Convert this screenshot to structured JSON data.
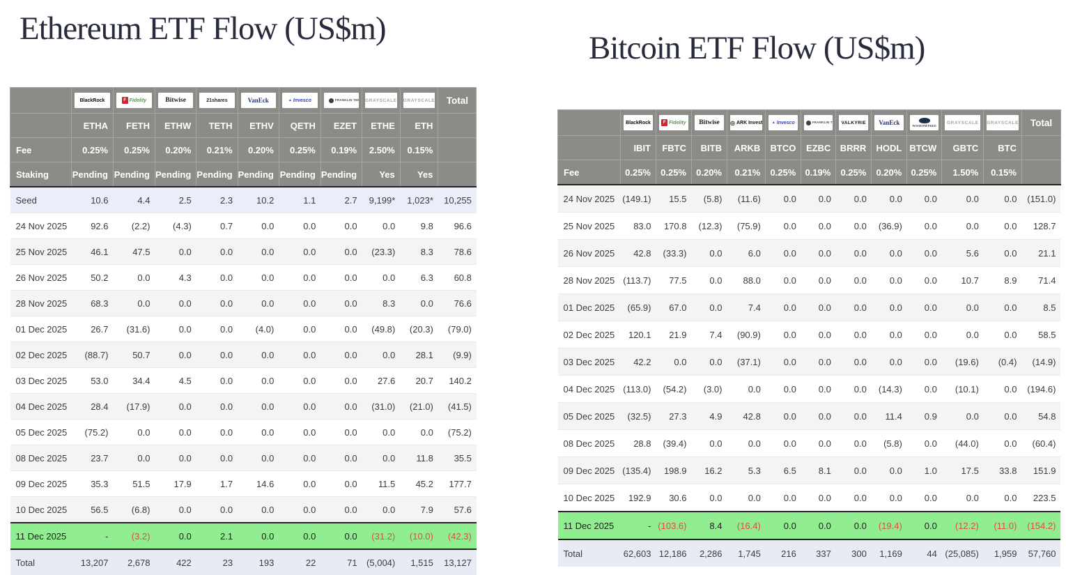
{
  "titles": {
    "eth": "Ethereum ETF Flow (US$m)",
    "btc": "Bitcoin ETF Flow (US$m)"
  },
  "colors": {
    "title_color": "#272b3c",
    "header_bg": "#8b8b87",
    "header_text": "#ffffff",
    "negative": "#e8473f",
    "value_color": "#3b3b3d",
    "seed_bg": "#ebedf9",
    "total_bg": "#e9ebf4",
    "green_bg": "#90ee90",
    "alt_bg": "#f4f4f2",
    "dark_line": "#232323"
  },
  "chart_data": [
    {
      "type": "table",
      "id": "eth",
      "title": "Ethereum ETF Flow (US$m)",
      "providers": [
        {
          "name": "BlackRock",
          "logo": "blackrock"
        },
        {
          "name": "Fidelity",
          "logo": "fidelity"
        },
        {
          "name": "Bitwise",
          "logo": "bitwise"
        },
        {
          "name": "21shares",
          "logo": "s21"
        },
        {
          "name": "VanEck",
          "logo": "vaneck"
        },
        {
          "name": "Invesco",
          "logo": "invesco"
        },
        {
          "name": "Franklin Templeton",
          "logo": "franklin"
        },
        {
          "name": "Grayscale",
          "logo": "grayscale"
        },
        {
          "name": "Grayscale",
          "logo": "grayscale"
        }
      ],
      "total_label": "Total",
      "columns": [
        "ETHA",
        "FETH",
        "ETHW",
        "TETH",
        "ETHV",
        "QETH",
        "EZET",
        "ETHE",
        "ETH"
      ],
      "fee_label": "Fee",
      "fees": [
        "0.25%",
        "0.25%",
        "0.20%",
        "0.21%",
        "0.20%",
        "0.25%",
        "0.19%",
        "2.50%",
        "0.15%"
      ],
      "staking_label": "Staking",
      "staking": [
        "Pending",
        "Pending",
        "Pending",
        "Pending",
        "Pending",
        "Pending",
        "Pending",
        "Yes",
        "Yes"
      ],
      "rows": [
        {
          "label": "Seed",
          "style": "seed",
          "values": [
            "10.6",
            "4.4",
            "2.5",
            "2.3",
            "10.2",
            "1.1",
            "2.7",
            "9,199*",
            "1,023*",
            "10,255"
          ]
        },
        {
          "label": "24 Nov 2025",
          "style": "white",
          "values": [
            "92.6",
            "(2.2)",
            "(4.3)",
            "0.7",
            "0.0",
            "0.0",
            "0.0",
            "0.0",
            "9.8",
            "96.6"
          ]
        },
        {
          "label": "25 Nov 2025",
          "style": "alt",
          "values": [
            "46.1",
            "47.5",
            "0.0",
            "0.0",
            "0.0",
            "0.0",
            "0.0",
            "(23.3)",
            "8.3",
            "78.6"
          ]
        },
        {
          "label": "26 Nov 2025",
          "style": "white",
          "values": [
            "50.2",
            "0.0",
            "4.3",
            "0.0",
            "0.0",
            "0.0",
            "0.0",
            "0.0",
            "6.3",
            "60.8"
          ]
        },
        {
          "label": "28 Nov 2025",
          "style": "alt",
          "values": [
            "68.3",
            "0.0",
            "0.0",
            "0.0",
            "0.0",
            "0.0",
            "0.0",
            "8.3",
            "0.0",
            "76.6"
          ]
        },
        {
          "label": "01 Dec 2025",
          "style": "white",
          "values": [
            "26.7",
            "(31.6)",
            "0.0",
            "0.0",
            "(4.0)",
            "0.0",
            "0.0",
            "(49.8)",
            "(20.3)",
            "(79.0)"
          ]
        },
        {
          "label": "02 Dec 2025",
          "style": "alt",
          "values": [
            "(88.7)",
            "50.7",
            "0.0",
            "0.0",
            "0.0",
            "0.0",
            "0.0",
            "0.0",
            "28.1",
            "(9.9)"
          ]
        },
        {
          "label": "03 Dec 2025",
          "style": "white",
          "values": [
            "53.0",
            "34.4",
            "4.5",
            "0.0",
            "0.0",
            "0.0",
            "0.0",
            "27.6",
            "20.7",
            "140.2"
          ]
        },
        {
          "label": "04 Dec 2025",
          "style": "alt",
          "values": [
            "28.4",
            "(17.9)",
            "0.0",
            "0.0",
            "0.0",
            "0.0",
            "0.0",
            "(31.0)",
            "(21.0)",
            "(41.5)"
          ]
        },
        {
          "label": "05 Dec 2025",
          "style": "white",
          "values": [
            "(75.2)",
            "0.0",
            "0.0",
            "0.0",
            "0.0",
            "0.0",
            "0.0",
            "0.0",
            "0.0",
            "(75.2)"
          ]
        },
        {
          "label": "08 Dec 2025",
          "style": "alt",
          "values": [
            "23.7",
            "0.0",
            "0.0",
            "0.0",
            "0.0",
            "0.0",
            "0.0",
            "0.0",
            "11.8",
            "35.5"
          ]
        },
        {
          "label": "09 Dec 2025",
          "style": "white",
          "values": [
            "35.3",
            "51.5",
            "17.9",
            "1.7",
            "14.6",
            "0.0",
            "0.0",
            "11.5",
            "45.2",
            "177.7"
          ]
        },
        {
          "label": "10 Dec 2025",
          "style": "alt",
          "values": [
            "56.5",
            "(6.8)",
            "0.0",
            "0.0",
            "0.0",
            "0.0",
            "0.0",
            "0.0",
            "7.9",
            "57.6"
          ]
        },
        {
          "label": "11 Dec 2025",
          "style": "green",
          "values": [
            "-",
            "(3.2)",
            "0.0",
            "2.1",
            "0.0",
            "0.0",
            "0.0",
            "(31.2)",
            "(10.0)",
            "(42.3)"
          ]
        },
        {
          "label": "Total",
          "style": "total",
          "values": [
            "13,207",
            "2,678",
            "422",
            "23",
            "193",
            "22",
            "71",
            "(5,004)",
            "1,515",
            "13,127"
          ]
        }
      ]
    },
    {
      "type": "table",
      "id": "btc",
      "title": "Bitcoin ETF Flow (US$m)",
      "providers": [
        {
          "name": "BlackRock",
          "logo": "blackrock"
        },
        {
          "name": "Fidelity",
          "logo": "fidelity"
        },
        {
          "name": "Bitwise",
          "logo": "bitwise"
        },
        {
          "name": "ARK Invest",
          "logo": "ark"
        },
        {
          "name": "Invesco",
          "logo": "invesco"
        },
        {
          "name": "Franklin Templeton",
          "logo": "franklin"
        },
        {
          "name": "Valkyrie",
          "logo": "valkyrie"
        },
        {
          "name": "VanEck",
          "logo": "vaneck"
        },
        {
          "name": "WisdomTree",
          "logo": "wisdomtree"
        },
        {
          "name": "Grayscale",
          "logo": "grayscale"
        },
        {
          "name": "Grayscale",
          "logo": "grayscale"
        }
      ],
      "total_label": "Total",
      "columns": [
        "IBIT",
        "FBTC",
        "BITB",
        "ARKB",
        "BTCO",
        "EZBC",
        "BRRR",
        "HODL",
        "BTCW",
        "GBTC",
        "BTC"
      ],
      "fee_label": "Fee",
      "fees": [
        "0.25%",
        "0.25%",
        "0.20%",
        "0.21%",
        "0.25%",
        "0.19%",
        "0.25%",
        "0.20%",
        "0.25%",
        "1.50%",
        "0.15%"
      ],
      "rows": [
        {
          "label": "24 Nov 2025",
          "style": "alt",
          "values": [
            "(149.1)",
            "15.5",
            "(5.8)",
            "(11.6)",
            "0.0",
            "0.0",
            "0.0",
            "0.0",
            "0.0",
            "0.0",
            "0.0",
            "(151.0)"
          ]
        },
        {
          "label": "25 Nov 2025",
          "style": "white",
          "values": [
            "83.0",
            "170.8",
            "(12.3)",
            "(75.9)",
            "0.0",
            "0.0",
            "0.0",
            "(36.9)",
            "0.0",
            "0.0",
            "0.0",
            "128.7"
          ]
        },
        {
          "label": "26 Nov 2025",
          "style": "alt",
          "values": [
            "42.8",
            "(33.3)",
            "0.0",
            "6.0",
            "0.0",
            "0.0",
            "0.0",
            "0.0",
            "0.0",
            "5.6",
            "0.0",
            "21.1"
          ]
        },
        {
          "label": "28 Nov 2025",
          "style": "white",
          "values": [
            "(113.7)",
            "77.5",
            "0.0",
            "88.0",
            "0.0",
            "0.0",
            "0.0",
            "0.0",
            "0.0",
            "10.7",
            "8.9",
            "71.4"
          ]
        },
        {
          "label": "01 Dec 2025",
          "style": "alt",
          "values": [
            "(65.9)",
            "67.0",
            "0.0",
            "7.4",
            "0.0",
            "0.0",
            "0.0",
            "0.0",
            "0.0",
            "0.0",
            "0.0",
            "8.5"
          ]
        },
        {
          "label": "02 Dec 2025",
          "style": "white",
          "values": [
            "120.1",
            "21.9",
            "7.4",
            "(90.9)",
            "0.0",
            "0.0",
            "0.0",
            "0.0",
            "0.0",
            "0.0",
            "0.0",
            "58.5"
          ]
        },
        {
          "label": "03 Dec 2025",
          "style": "alt",
          "values": [
            "42.2",
            "0.0",
            "0.0",
            "(37.1)",
            "0.0",
            "0.0",
            "0.0",
            "0.0",
            "0.0",
            "(19.6)",
            "(0.4)",
            "(14.9)"
          ]
        },
        {
          "label": "04 Dec 2025",
          "style": "white",
          "values": [
            "(113.0)",
            "(54.2)",
            "(3.0)",
            "0.0",
            "0.0",
            "0.0",
            "0.0",
            "(14.3)",
            "0.0",
            "(10.1)",
            "0.0",
            "(194.6)"
          ]
        },
        {
          "label": "05 Dec 2025",
          "style": "alt",
          "values": [
            "(32.5)",
            "27.3",
            "4.9",
            "42.8",
            "0.0",
            "0.0",
            "0.0",
            "11.4",
            "0.9",
            "0.0",
            "0.0",
            "54.8"
          ]
        },
        {
          "label": "08 Dec 2025",
          "style": "white",
          "values": [
            "28.8",
            "(39.4)",
            "0.0",
            "0.0",
            "0.0",
            "0.0",
            "0.0",
            "(5.8)",
            "0.0",
            "(44.0)",
            "0.0",
            "(60.4)"
          ]
        },
        {
          "label": "09 Dec 2025",
          "style": "alt",
          "values": [
            "(135.4)",
            "198.9",
            "16.2",
            "5.3",
            "6.5",
            "8.1",
            "0.0",
            "0.0",
            "1.0",
            "17.5",
            "33.8",
            "151.9"
          ]
        },
        {
          "label": "10 Dec 2025",
          "style": "white",
          "values": [
            "192.9",
            "30.6",
            "0.0",
            "0.0",
            "0.0",
            "0.0",
            "0.0",
            "0.0",
            "0.0",
            "0.0",
            "0.0",
            "223.5"
          ]
        },
        {
          "label": "11 Dec 2025",
          "style": "green",
          "values": [
            "-",
            "(103.6)",
            "8.4",
            "(16.4)",
            "0.0",
            "0.0",
            "0.0",
            "(19.4)",
            "0.0",
            "(12.2)",
            "(11.0)",
            "(154.2)"
          ]
        },
        {
          "label": "Total",
          "style": "total",
          "values": [
            "62,603",
            "12,186",
            "2,286",
            "1,745",
            "216",
            "337",
            "300",
            "1,169",
            "44",
            "(25,085)",
            "1,959",
            "57,760"
          ]
        }
      ]
    }
  ]
}
